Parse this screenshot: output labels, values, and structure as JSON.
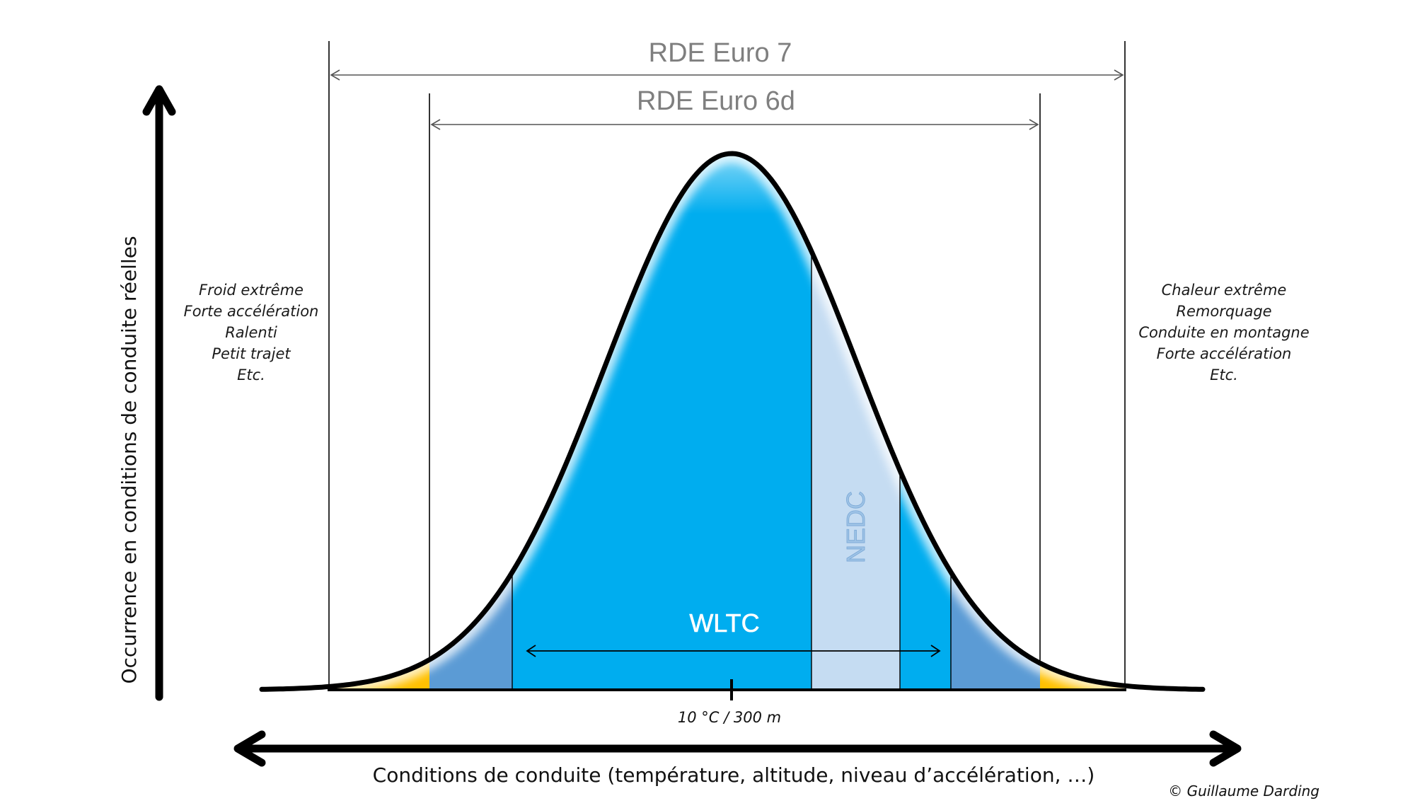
{
  "title": {
    "euro7": "RDE Euro 7",
    "euro6d": "RDE Euro 6d"
  },
  "left_conditions": [
    "Froid extrême",
    "Forte accélération",
    "Ralenti",
    "Petit trajet",
    "Etc."
  ],
  "right_conditions": [
    "Chaleur extrême",
    "Remorquage",
    "Conduite en montagne",
    "Forte accélération",
    "Etc."
  ],
  "cycles": {
    "wltc": "WLTC",
    "nedc": "NEDC"
  },
  "axes": {
    "y_label": "Occurrence en conditions de conduite réelles",
    "x_label": "Conditions de conduite (température, altitude, niveau d’accélération, …)"
  },
  "center_label": "10 °C / 300 m",
  "credit": "© Guillaume Darding",
  "colors": {
    "core": "#00adef",
    "mid": "#5b9bd5",
    "tails": "#ffc000",
    "nedc": "#c5dcf2",
    "outline": "#000000"
  }
}
